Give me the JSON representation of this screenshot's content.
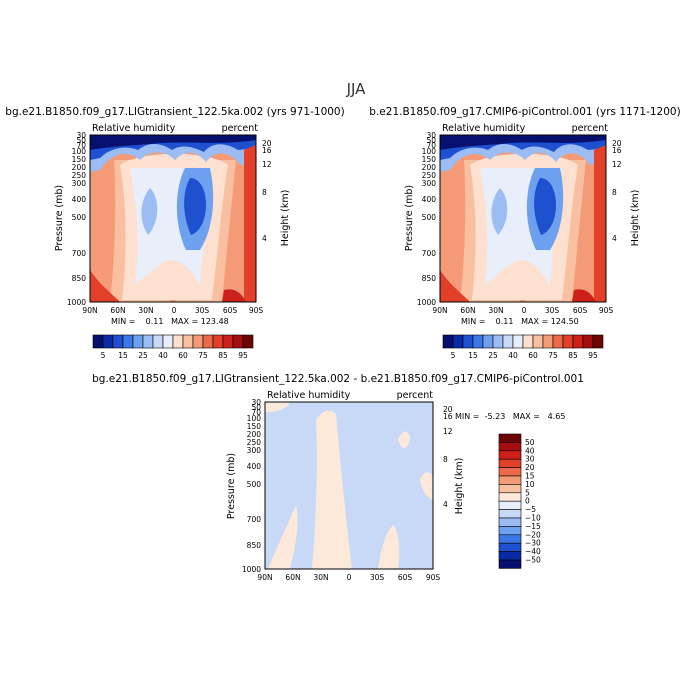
{
  "season": "JJA",
  "colors": {
    "rh_scale": [
      "#06106e",
      "#0a2aa6",
      "#1e50d0",
      "#3c78e6",
      "#6ea0f0",
      "#9bbdf4",
      "#c7d9f7",
      "#e8eefa",
      "#fde0cf",
      "#f8bfa0",
      "#f49a76",
      "#ec6a4a",
      "#e3402a",
      "#cc2018",
      "#a40e0e",
      "#6e0505"
    ],
    "diff_scale": [
      "#06106e",
      "#0a2aa6",
      "#1e50d0",
      "#3c78e6",
      "#6ea0f0",
      "#9bbdf4",
      "#c7d9f7",
      "#e8eefa",
      "#fde9da",
      "#f8bfa0",
      "#f49a76",
      "#ec6a4a",
      "#e3402a",
      "#cc2018",
      "#a40e0e",
      "#6e0505"
    ]
  },
  "chart_data": [
    {
      "type": "contour",
      "title": "bg.e21.B1850.f09_g17.LIGtransient_122.5ka.002 (yrs 971-1000)",
      "left_label": "Relative humidity",
      "right_label": "percent",
      "ylabel": "Pressure  (mb)",
      "y2label": "Height  (km)",
      "xticks": [
        "90N",
        "60N",
        "30N",
        "0",
        "30S",
        "60S",
        "90S"
      ],
      "yticks": [
        "30",
        "50",
        "70",
        "100",
        "150",
        "200",
        "250",
        "300",
        "400",
        "500",
        "700",
        "850",
        "1000"
      ],
      "y2ticks": [
        "20",
        "16",
        "12",
        "8",
        "4"
      ],
      "stats": "MIN =    0.11   MAX = 123.48",
      "ylim": [
        1000,
        30
      ],
      "xlim": [
        90,
        -90
      ]
    },
    {
      "type": "contour",
      "title": "b.e21.B1850.f09_g17.CMIP6-piControl.001 (yrs 1171-1200)",
      "left_label": "Relative humidity",
      "right_label": "percent",
      "ylabel": "Pressure  (mb)",
      "y2label": "Height  (km)",
      "xticks": [
        "90N",
        "60N",
        "30N",
        "0",
        "30S",
        "60S",
        "90S"
      ],
      "yticks": [
        "30",
        "50",
        "70",
        "100",
        "150",
        "200",
        "250",
        "300",
        "400",
        "500",
        "700",
        "850",
        "1000"
      ],
      "y2ticks": [
        "20",
        "16",
        "12",
        "8",
        "4"
      ],
      "stats": "MIN =    0.11   MAX = 124.50",
      "ylim": [
        1000,
        30
      ],
      "xlim": [
        90,
        -90
      ]
    },
    {
      "type": "contour",
      "title": "bg.e21.B1850.f09_g17.LIGtransient_122.5ka.002 - b.e21.B1850.f09_g17.CMIP6-piControl.001",
      "left_label": "Relative humidity",
      "right_label": "percent",
      "ylabel": "Pressure  (mb)",
      "y2label": "Height  (km)",
      "xticks": [
        "90N",
        "60N",
        "30N",
        "0",
        "30S",
        "60S",
        "90S"
      ],
      "yticks": [
        "30",
        "50",
        "70",
        "100",
        "150",
        "200",
        "250",
        "300",
        "400",
        "500",
        "700",
        "850",
        "1000"
      ],
      "y2ticks": [
        "20",
        "16",
        "12",
        "8",
        "4"
      ],
      "stats": "MIN =  -5.23   MAX =   4.65",
      "ylim": [
        1000,
        30
      ],
      "xlim": [
        90,
        -90
      ]
    }
  ],
  "colorbar_rh": {
    "labels": [
      "5",
      "15",
      "25",
      "40",
      "60",
      "75",
      "85",
      "95"
    ]
  },
  "colorbar_diff": {
    "labels": [
      "50",
      "40",
      "30",
      "20",
      "15",
      "10",
      "5",
      "0",
      "−5",
      "−10",
      "−15",
      "−20",
      "−30",
      "−40",
      "−50"
    ]
  }
}
